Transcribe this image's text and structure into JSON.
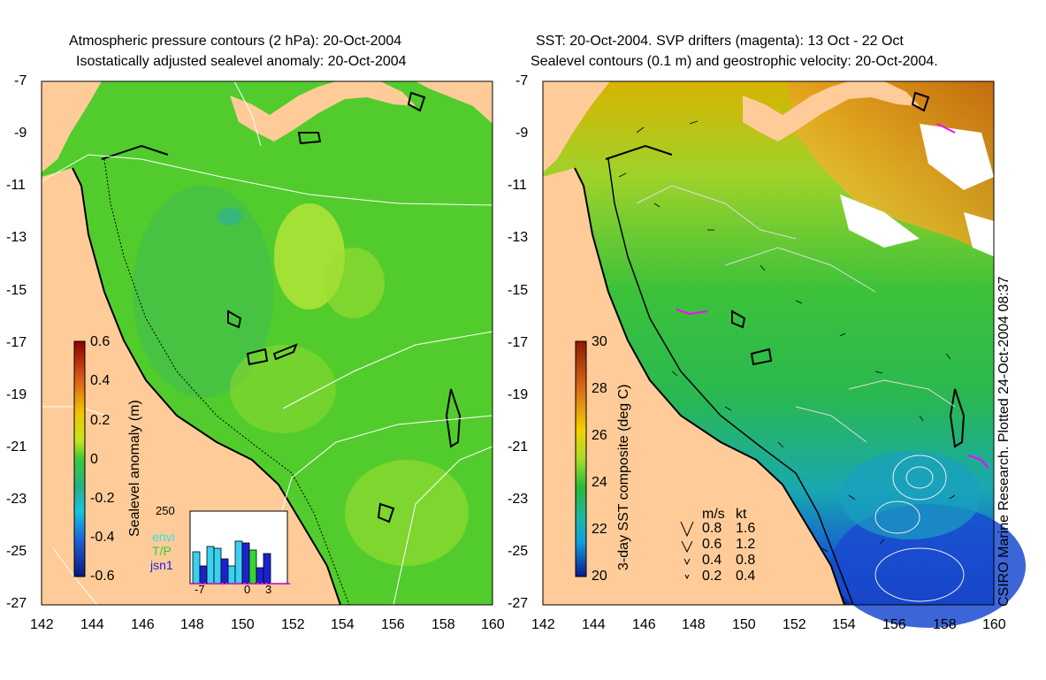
{
  "left_panel": {
    "title_line1": "Atmospheric pressure contours (2 hPa): 20-Oct-2004",
    "title_line2": "Isostatically adjusted sealevel anomaly: 20-Oct-2004",
    "colorbar_label": "Sealevel anomaly (m)",
    "colorbar_ticks": [
      "0.6",
      "0.4",
      "0.2",
      "0",
      "-0.2",
      "-0.4",
      "-0.6"
    ],
    "inset": {
      "y_max": "250",
      "legend": [
        "envi",
        "T/P",
        "jsn1"
      ],
      "x_ticks": [
        "-7",
        "0",
        "3"
      ]
    }
  },
  "right_panel": {
    "title_line1": "SST: 20-Oct-2004. SVP drifters (magenta): 13 Oct - 22 Oct",
    "title_line2": "Sealevel contours (0.1 m) and geostrophic velocity: 20-Oct-2004.",
    "colorbar_label": "3-day SST composite (deg C)",
    "colorbar_ticks": [
      "30",
      "28",
      "26",
      "24",
      "22",
      "20"
    ],
    "velocity_legend": {
      "header_ms": "m/s",
      "header_kt": "kt",
      "rows": [
        {
          "ms": "0.8",
          "kt": "1.6"
        },
        {
          "ms": "0.6",
          "kt": "1.2"
        },
        {
          "ms": "0.4",
          "kt": "0.8"
        },
        {
          "ms": "0.2",
          "kt": "0.4"
        }
      ]
    }
  },
  "lat_ticks": [
    "-7",
    "-9",
    "-11",
    "-13",
    "-15",
    "-17",
    "-19",
    "-21",
    "-23",
    "-25",
    "-27"
  ],
  "lon_ticks": [
    "142",
    "144",
    "146",
    "148",
    "150",
    "152",
    "154",
    "156",
    "158",
    "160"
  ],
  "credit": "CSIRO Marine Research. Plotted 24-Oct-2004 08:37",
  "colors": {
    "land": "#ffcc99",
    "sea_green": "#4fcc2a",
    "coast": "#000000"
  }
}
